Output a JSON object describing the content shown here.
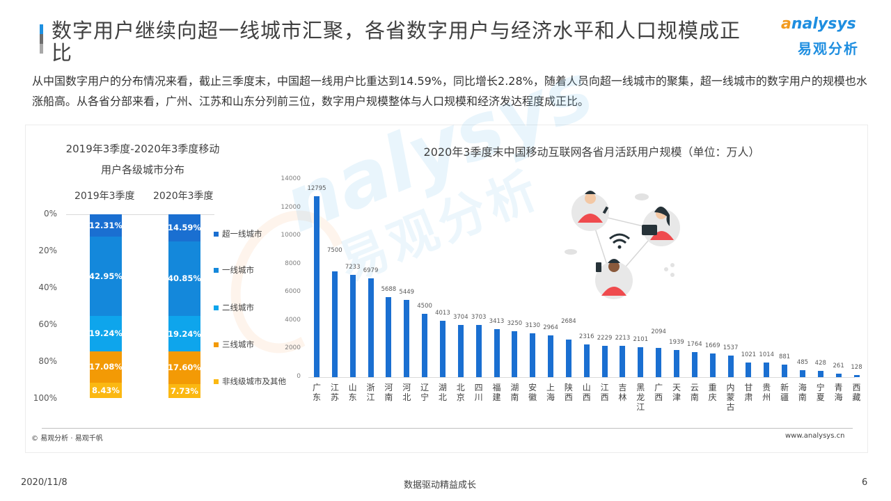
{
  "header": {
    "title": "数字用户继续向超一线城市汇聚，各省数字用户与经济水平和人口规模成正比",
    "logo_en_a": "a",
    "logo_en_rest": "nalysys",
    "logo_cn": "易观分析"
  },
  "summary": "从中国数字用户的分布情况来看，截止三季度末，中国超一线用户比重达到14.59%，同比增长2.28%，随着人员向超一线城市的聚集，超一线城市的数字用户的规模也水涨船高。从各省分部来看，广州、江苏和山东分列前三位，数字用户规模整体与人口规模和经济发达程度成正比。",
  "watermark": {
    "en": "nalysys",
    "cn": "易观分析"
  },
  "chart_data": [
    {
      "type": "bar",
      "stacked": true,
      "percent": true,
      "title": "2019年3季度-2020年3季度移动用户各级城市分布",
      "title_line1": "2019年3季度-2020年3季度移动",
      "title_line2": "用户各级城市分布",
      "categories": [
        "2019年3季度",
        "2020年3季度"
      ],
      "y_ticks": [
        "0%",
        "20%",
        "40%",
        "60%",
        "80%",
        "100%"
      ],
      "ylim": [
        0,
        100
      ],
      "y_inverted": true,
      "legend_position": "right",
      "series": [
        {
          "name": "超一线城市",
          "color": "#1a6fd1",
          "values": [
            12.31,
            14.59
          ],
          "labels": [
            "12.31%",
            "14.59%"
          ]
        },
        {
          "name": "一线城市",
          "color": "#1488db",
          "values": [
            42.95,
            40.85
          ],
          "labels": [
            "42.95%",
            "40.85%"
          ]
        },
        {
          "name": "二线城市",
          "color": "#0ea5ec",
          "values": [
            19.24,
            19.24
          ],
          "labels": [
            "19.24%",
            "19.24%"
          ]
        },
        {
          "name": "三线城市",
          "color": "#f39a05",
          "values": [
            17.08,
            17.6
          ],
          "labels": [
            "17.08%",
            "17.60%"
          ]
        },
        {
          "name": "非线级城市及其他",
          "color": "#fbb812",
          "values": [
            8.43,
            7.73
          ],
          "labels": [
            "8.43%",
            "7.73%"
          ]
        }
      ]
    },
    {
      "type": "bar",
      "title": "2020年3季度末中国移动互联网各省月活跃用户规模（单位：万人）",
      "xlabel": "",
      "ylabel": "",
      "ylim": [
        0,
        14000
      ],
      "y_ticks": [
        "0",
        "2000",
        "4000",
        "6000",
        "8000",
        "10000",
        "12000",
        "14000"
      ],
      "grid": false,
      "bar_color": "#1a6fd1",
      "categories": [
        "广东",
        "江苏",
        "山东",
        "浙江",
        "河南",
        "河北",
        "辽宁",
        "湖北",
        "北京",
        "四川",
        "福建",
        "湖南",
        "安徽",
        "上海",
        "陕西",
        "山西",
        "江西",
        "吉林",
        "黑龙江",
        "广西",
        "天津",
        "云南",
        "重庆",
        "内蒙古",
        "甘肃",
        "贵州",
        "新疆",
        "海南",
        "宁夏",
        "青海",
        "西藏"
      ],
      "values": [
        12795,
        7500,
        7233,
        6979,
        5688,
        5449,
        4500,
        4013,
        3704,
        3703,
        3413,
        3250,
        3130,
        2964,
        2684,
        2316,
        2229,
        2213,
        2101,
        2094,
        1939,
        1764,
        1669,
        1537,
        1021,
        1014,
        881,
        485,
        428,
        261,
        128
      ]
    }
  ],
  "footer": {
    "source": "© 易观分析 · 易观千帆",
    "website": "www.analysys.cn",
    "date": "2020/11/8",
    "slogan": "数据驱动精益成长",
    "page": "6"
  }
}
